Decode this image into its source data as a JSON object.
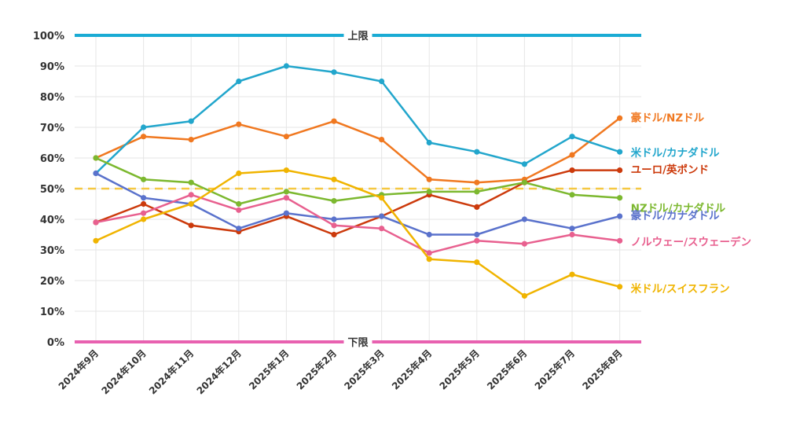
{
  "chart_data": {
    "type": "line",
    "title": "",
    "xlabel": "",
    "ylabel": "",
    "ylim": [
      0,
      100
    ],
    "y_ticks": [
      "0%",
      "10%",
      "20%",
      "30%",
      "40%",
      "50%",
      "60%",
      "70%",
      "80%",
      "90%",
      "100%"
    ],
    "y_tick_values": [
      0,
      10,
      20,
      30,
      40,
      50,
      60,
      70,
      80,
      90,
      100
    ],
    "categories": [
      "2024年9月",
      "2024年10月",
      "2024年11月",
      "2024年12月",
      "2025年1月",
      "2025年2月",
      "2025年3月",
      "2025年4月",
      "2025年5月",
      "2025年6月",
      "2025年7月",
      "2025年8月"
    ],
    "grid": true,
    "legend": "labels at line ends (right)",
    "reference_lines": [
      {
        "name": "上限",
        "value": 100,
        "color": "#1aabd4",
        "style": "solid"
      },
      {
        "name": "下限",
        "value": 0,
        "color": "#e861b0",
        "style": "solid"
      },
      {
        "name": "",
        "value": 50,
        "color": "#f5c842",
        "style": "dashed"
      }
    ],
    "series": [
      {
        "name": "豪ドル/NZドル",
        "color": "#f07820",
        "values": [
          60,
          67,
          66,
          71,
          67,
          72,
          66,
          53,
          52,
          53,
          61,
          73
        ]
      },
      {
        "name": "米ドル/カナダドル",
        "color": "#22a6cc",
        "values": [
          55,
          70,
          72,
          85,
          90,
          88,
          85,
          65,
          62,
          58,
          67,
          62
        ]
      },
      {
        "name": "ユーロ/英ポンド",
        "color": "#cc3a0c",
        "values": [
          39,
          45,
          38,
          36,
          41,
          35,
          41,
          48,
          44,
          52,
          56,
          56
        ]
      },
      {
        "name": "NZドル/カナダドル",
        "color": "#7cb82f",
        "values": [
          60,
          53,
          52,
          45,
          49,
          46,
          48,
          49,
          49,
          52,
          48,
          47
        ]
      },
      {
        "name": "豪ドル/カナダドル",
        "color": "#5a72cc",
        "values": [
          55,
          47,
          45,
          37,
          42,
          40,
          41,
          35,
          35,
          40,
          37,
          41
        ]
      },
      {
        "name": "ノルウェー/スウェーデン",
        "color": "#e8608f",
        "values": [
          39,
          42,
          48,
          43,
          47,
          38,
          37,
          29,
          33,
          32,
          35,
          33
        ]
      },
      {
        "name": "米ドル/スイスフラン",
        "color": "#f0b400",
        "values": [
          33,
          40,
          45,
          55,
          56,
          53,
          47,
          27,
          26,
          15,
          22,
          18
        ]
      }
    ]
  }
}
